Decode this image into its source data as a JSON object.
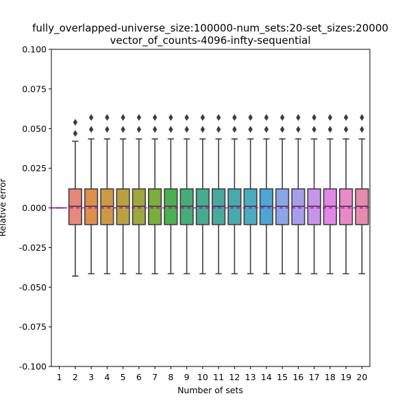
{
  "chart_data": {
    "type": "box",
    "title_line1": "fully_overlapped-universe_size:100000-num_sets:20-set_sizes:20000",
    "title_line2": "vector_of_counts-4096-infty-sequential",
    "xlabel": "Number of sets",
    "ylabel": "Relative error",
    "ylim": [
      -0.1,
      0.1
    ],
    "yticks": [
      "-0.100",
      "-0.075",
      "-0.050",
      "-0.025",
      "0.000",
      "0.025",
      "0.050",
      "0.075",
      "0.100"
    ],
    "reference_line": {
      "y": 0.0,
      "style": "dashed",
      "color": "#c000c0"
    },
    "categories": [
      "1",
      "2",
      "3",
      "4",
      "5",
      "6",
      "7",
      "8",
      "9",
      "10",
      "11",
      "12",
      "13",
      "14",
      "15",
      "16",
      "17",
      "18",
      "19",
      "20"
    ],
    "boxes": [
      {
        "x": "1",
        "min": 0.0,
        "q1": 0.0,
        "median": 0.0,
        "q3": 0.0,
        "max": 0.0,
        "outliers": [],
        "color": "#555555"
      },
      {
        "x": "2",
        "min": -0.043,
        "q1": -0.0105,
        "median": 0.001,
        "q3": 0.012,
        "max": 0.042,
        "outliers": [
          0.047,
          0.054
        ],
        "color": "#e8877c"
      },
      {
        "x": "3",
        "min": -0.0415,
        "q1": -0.0105,
        "median": 0.001,
        "q3": 0.012,
        "max": 0.0435,
        "outliers": [
          0.0495,
          0.057
        ],
        "color": "#dd8f4e"
      },
      {
        "x": "4",
        "min": -0.0415,
        "q1": -0.0105,
        "median": 0.001,
        "q3": 0.012,
        "max": 0.0435,
        "outliers": [
          0.0495,
          0.057
        ],
        "color": "#cc9a45"
      },
      {
        "x": "5",
        "min": -0.0415,
        "q1": -0.0105,
        "median": 0.001,
        "q3": 0.012,
        "max": 0.0435,
        "outliers": [
          0.0495,
          0.057
        ],
        "color": "#b9a142"
      },
      {
        "x": "6",
        "min": -0.0415,
        "q1": -0.0105,
        "median": 0.001,
        "q3": 0.012,
        "max": 0.0435,
        "outliers": [
          0.0495,
          0.057
        ],
        "color": "#9ea840"
      },
      {
        "x": "7",
        "min": -0.0415,
        "q1": -0.0105,
        "median": 0.001,
        "q3": 0.012,
        "max": 0.0435,
        "outliers": [
          0.0495,
          0.057
        ],
        "color": "#7aae3f"
      },
      {
        "x": "8",
        "min": -0.0415,
        "q1": -0.0105,
        "median": 0.001,
        "q3": 0.012,
        "max": 0.0435,
        "outliers": [
          0.0495,
          0.057
        ],
        "color": "#4bb04f"
      },
      {
        "x": "9",
        "min": -0.0415,
        "q1": -0.0105,
        "median": 0.001,
        "q3": 0.012,
        "max": 0.0435,
        "outliers": [
          0.0495,
          0.057
        ],
        "color": "#47ac78"
      },
      {
        "x": "10",
        "min": -0.0415,
        "q1": -0.0105,
        "median": 0.001,
        "q3": 0.012,
        "max": 0.0435,
        "outliers": [
          0.0495,
          0.057
        ],
        "color": "#48aa8f"
      },
      {
        "x": "11",
        "min": -0.0415,
        "q1": -0.0105,
        "median": 0.001,
        "q3": 0.012,
        "max": 0.0435,
        "outliers": [
          0.0495,
          0.057
        ],
        "color": "#49a99f"
      },
      {
        "x": "12",
        "min": -0.0415,
        "q1": -0.0105,
        "median": 0.001,
        "q3": 0.012,
        "max": 0.0435,
        "outliers": [
          0.0495,
          0.057
        ],
        "color": "#4aa9ad"
      },
      {
        "x": "13",
        "min": -0.0415,
        "q1": -0.0105,
        "median": 0.001,
        "q3": 0.012,
        "max": 0.0435,
        "outliers": [
          0.0495,
          0.057
        ],
        "color": "#4babbe"
      },
      {
        "x": "14",
        "min": -0.0415,
        "q1": -0.0105,
        "median": 0.001,
        "q3": 0.012,
        "max": 0.0435,
        "outliers": [
          0.0495,
          0.057
        ],
        "color": "#4fa6d6"
      },
      {
        "x": "15",
        "min": -0.0415,
        "q1": -0.0105,
        "median": 0.001,
        "q3": 0.012,
        "max": 0.0435,
        "outliers": [
          0.0495,
          0.057
        ],
        "color": "#8aa6e8"
      },
      {
        "x": "16",
        "min": -0.0415,
        "q1": -0.0105,
        "median": 0.001,
        "q3": 0.012,
        "max": 0.0435,
        "outliers": [
          0.0495,
          0.057
        ],
        "color": "#a89eec"
      },
      {
        "x": "17",
        "min": -0.0415,
        "q1": -0.0105,
        "median": 0.001,
        "q3": 0.012,
        "max": 0.0435,
        "outliers": [
          0.0495,
          0.057
        ],
        "color": "#c695ea"
      },
      {
        "x": "18",
        "min": -0.0415,
        "q1": -0.0105,
        "median": 0.001,
        "q3": 0.012,
        "max": 0.0435,
        "outliers": [
          0.0495,
          0.057
        ],
        "color": "#e187e6"
      },
      {
        "x": "19",
        "min": -0.0415,
        "q1": -0.0105,
        "median": 0.001,
        "q3": 0.012,
        "max": 0.0435,
        "outliers": [
          0.0495,
          0.057
        ],
        "color": "#e98ac8"
      },
      {
        "x": "20",
        "min": -0.0415,
        "q1": -0.0105,
        "median": 0.001,
        "q3": 0.012,
        "max": 0.0435,
        "outliers": [
          0.0495,
          0.057
        ],
        "color": "#e68aae"
      }
    ],
    "grid": false,
    "legend": "none"
  }
}
